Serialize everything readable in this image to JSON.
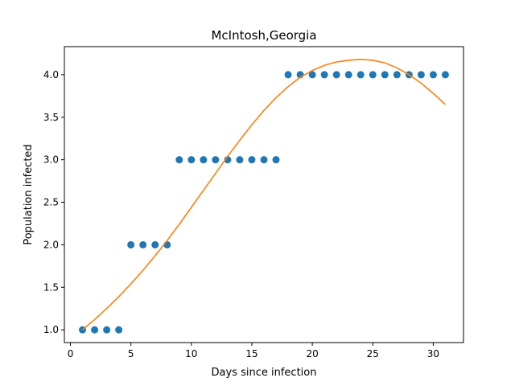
{
  "chart_data": {
    "type": "scatter",
    "title": "McIntosh,Georgia",
    "xlabel": "Days since infection",
    "ylabel": "Population infected",
    "xlim": [
      -0.5,
      32.5
    ],
    "ylim": [
      0.85,
      4.33
    ],
    "xticks": [
      0,
      5,
      10,
      15,
      20,
      25,
      30
    ],
    "yticks": [
      1.0,
      1.5,
      2.0,
      2.5,
      3.0,
      3.5,
      4.0
    ],
    "xtick_labels": [
      "0",
      "5",
      "10",
      "15",
      "20",
      "25",
      "30"
    ],
    "ytick_labels": [
      "1.0",
      "1.5",
      "2.0",
      "2.5",
      "3.0",
      "3.5",
      "4.0"
    ],
    "grid": false,
    "series": [
      {
        "kind": "scatter",
        "color": "#1f77b4",
        "x": [
          1,
          2,
          3,
          4,
          5,
          6,
          7,
          8,
          9,
          10,
          11,
          12,
          13,
          14,
          15,
          16,
          17,
          18,
          19,
          20,
          21,
          22,
          23,
          24,
          25,
          26,
          27,
          28,
          29,
          30,
          31
        ],
        "y": [
          1,
          1,
          1,
          1,
          2,
          2,
          2,
          2,
          3,
          3,
          3,
          3,
          3,
          3,
          3,
          3,
          3,
          4,
          4,
          4,
          4,
          4,
          4,
          4,
          4,
          4,
          4,
          4,
          4,
          4,
          4
        ]
      },
      {
        "kind": "line",
        "color": "#ff7f0e",
        "x": [
          1,
          2,
          3,
          4,
          5,
          6,
          7,
          8,
          9,
          10,
          11,
          12,
          13,
          14,
          15,
          16,
          17,
          18,
          19,
          20,
          21,
          22,
          23,
          24,
          25,
          26,
          27,
          28,
          29,
          30,
          31
        ],
        "y": [
          1.0,
          1.12,
          1.25,
          1.39,
          1.54,
          1.7,
          1.87,
          2.05,
          2.24,
          2.44,
          2.64,
          2.84,
          3.04,
          3.23,
          3.41,
          3.58,
          3.73,
          3.86,
          3.97,
          4.05,
          4.11,
          4.15,
          4.17,
          4.18,
          4.17,
          4.14,
          4.08,
          4.0,
          3.9,
          3.78,
          3.65
        ]
      }
    ]
  }
}
